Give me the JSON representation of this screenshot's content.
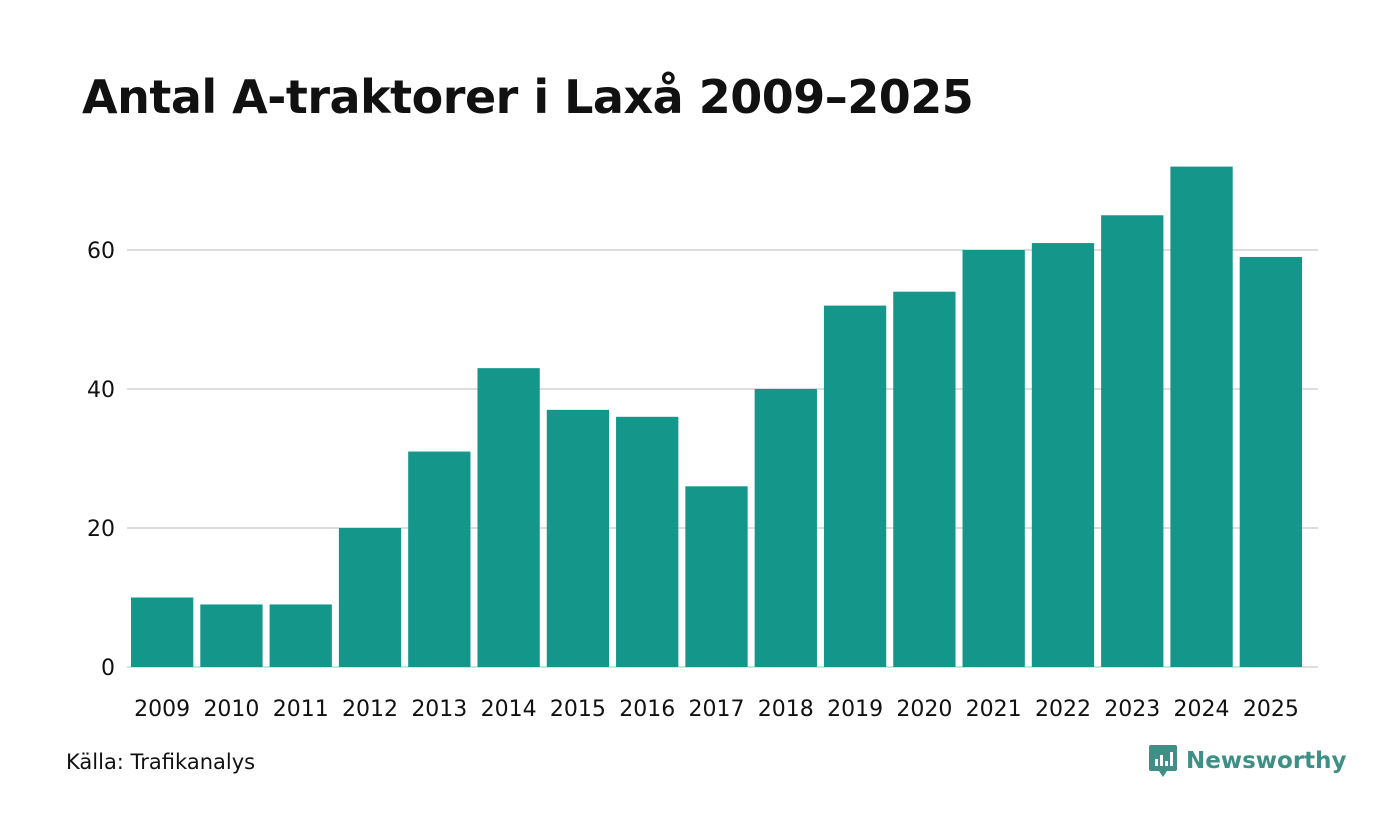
{
  "title": "Antal A-traktorer i Laxå 2009–2025",
  "source": "Källa: Trafikanalys",
  "brand": {
    "name": "Newsworthy",
    "icon": "newsworthy-logo-icon",
    "color": "#3f8f87"
  },
  "colors": {
    "bar": "#15968a",
    "grid": "#dddddd",
    "text": "#111111"
  },
  "chart_data": {
    "type": "bar",
    "title": "Antal A-traktorer i Laxå 2009–2025",
    "xlabel": "",
    "ylabel": "",
    "categories": [
      "2009",
      "2010",
      "2011",
      "2012",
      "2013",
      "2014",
      "2015",
      "2016",
      "2017",
      "2018",
      "2019",
      "2020",
      "2021",
      "2022",
      "2023",
      "2024",
      "2025"
    ],
    "values": [
      10,
      9,
      9,
      20,
      31,
      43,
      37,
      36,
      26,
      40,
      52,
      54,
      60,
      61,
      65,
      72,
      59
    ],
    "ylim": [
      0,
      75
    ],
    "yticks": [
      0,
      20,
      40,
      60
    ],
    "grid": true,
    "legend": "none"
  }
}
